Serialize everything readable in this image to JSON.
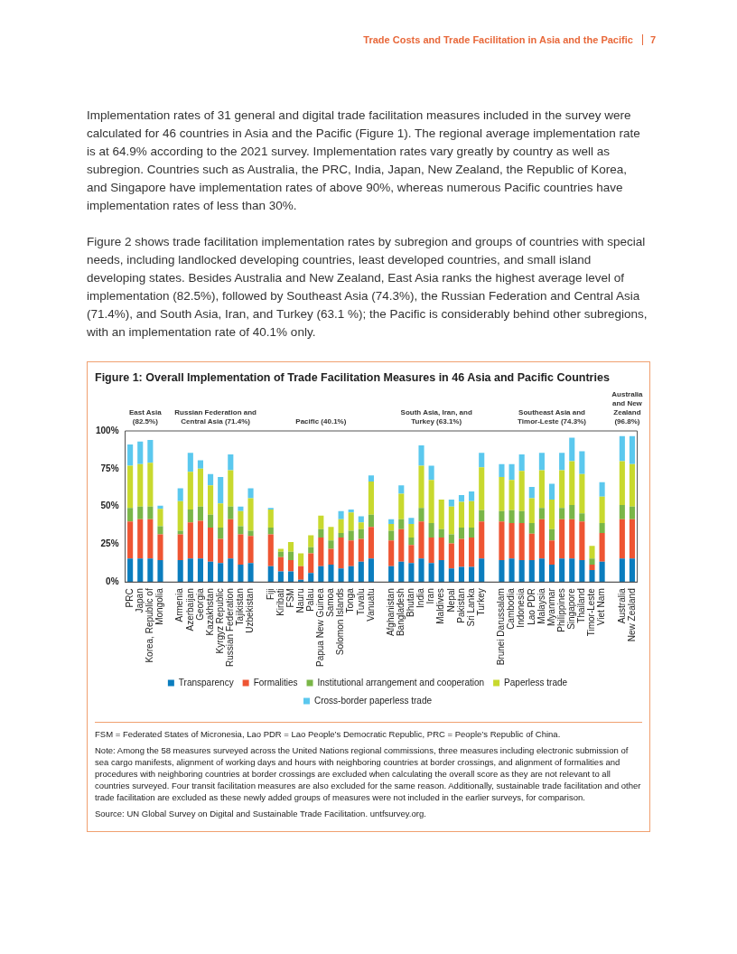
{
  "chart_data": {
    "type": "bar",
    "stacked": true,
    "title": "Figure 1: Overall Implementation of Trade Facilitation Measures in 46 Asia and Pacific Countries",
    "categories": [
      "PRC",
      "Japan",
      "Korea, Republic of",
      "Mongolia",
      null,
      "Armenia",
      "Azerbaijan",
      "Georgia",
      "Kazakhstan",
      "Kyrgyz Republic",
      "Russian Federation",
      "Tajikistan",
      "Uzbekistan",
      null,
      "Fiji",
      "Kiribati",
      "FSM",
      "Nauru",
      "Palau",
      "Papua New Guinea",
      "Samoa",
      "Solomon Islands",
      "Tonga",
      "Tuvalu",
      "Vanuatu",
      null,
      "Afghanistan",
      "Bangladesh",
      "Bhutan",
      "India",
      "Iran",
      "Maldives",
      "Nepal",
      "Pakistan",
      "Sri Lanka",
      "Turkey",
      null,
      "Brunei Darussalam",
      "Cambodia",
      "Indonesia",
      "Lao PDR",
      "Malaysia",
      "Myanmar",
      "Philippines",
      "Singapore",
      "Thailand",
      "Timor-Leste",
      "Viet Nam",
      null,
      "Australia",
      "New Zealand"
    ],
    "series": [
      {
        "name": "Transparency",
        "color": "#0b7dbe",
        "values": [
          15.5,
          15.5,
          15.5,
          14.5,
          null,
          14.5,
          15.5,
          15.5,
          13.5,
          12.5,
          15.5,
          11.5,
          12.5,
          null,
          10.5,
          7,
          7,
          1.5,
          6,
          10.5,
          11.5,
          9,
          10.5,
          13.5,
          15.5,
          null,
          10.5,
          13.5,
          12.5,
          15.5,
          12.5,
          14.5,
          9,
          10,
          10,
          15.5,
          null,
          14.5,
          15.5,
          14.5,
          14.5,
          15.5,
          11.5,
          15.5,
          15.5,
          14.5,
          8,
          13.5,
          null,
          15.5,
          15.5
        ]
      },
      {
        "name": "Formalities",
        "color": "#ee5533",
        "values": [
          24.5,
          26,
          26,
          17,
          null,
          17,
          24,
          25,
          22.5,
          16,
          26,
          20,
          18,
          null,
          21,
          9.5,
          7.5,
          9,
          13,
          19,
          10.5,
          20.5,
          17,
          15,
          21,
          null,
          17,
          21.5,
          12,
          24.5,
          17,
          15,
          16.5,
          18.5,
          19.5,
          24.5,
          null,
          25.5,
          23.5,
          24.5,
          17.5,
          26,
          16,
          26,
          26,
          25.5,
          3.5,
          19,
          null,
          26,
          26
        ]
      },
      {
        "name": "Institutional arrangement and cooperation",
        "color": "#7ab648",
        "values": [
          9,
          8.5,
          8.5,
          5.5,
          null,
          2.5,
          8.5,
          9.5,
          8.5,
          7.5,
          8.5,
          5.5,
          3.5,
          null,
          4.5,
          3.5,
          5.5,
          0,
          4,
          5.5,
          5.5,
          3,
          6.5,
          6.5,
          8,
          null,
          6.5,
          6.5,
          5,
          9,
          9.5,
          5.5,
          6,
          7.5,
          6.5,
          7.5,
          null,
          7,
          8.5,
          8,
          7,
          7.5,
          7.5,
          7.5,
          9.5,
          5.5,
          4,
          6.5,
          null,
          9.5,
          8.5
        ]
      },
      {
        "name": "Paperless trade",
        "color": "#c8d92e",
        "values": [
          28,
          28,
          29,
          11.5,
          null,
          19.5,
          25,
          25,
          19.5,
          16,
          24,
          10,
          21.5,
          null,
          12,
          2,
          6.5,
          8.5,
          8,
          9,
          9,
          9,
          12,
          4.5,
          22,
          null,
          4.5,
          17,
          9,
          28,
          28.5,
          19.5,
          18.5,
          17,
          17.5,
          28.5,
          null,
          22.5,
          20,
          26.5,
          16.5,
          25,
          19.5,
          25,
          29,
          26,
          8.5,
          17.5,
          null,
          29,
          28
        ]
      },
      {
        "name": "Cross-border paperless trade",
        "color": "#5bc8ee",
        "values": [
          14,
          15,
          15,
          2,
          null,
          8.5,
          12.5,
          5.5,
          7.5,
          17.5,
          10.5,
          3,
          6.5,
          null,
          1,
          0,
          0,
          0,
          0,
          0,
          0,
          5.5,
          2,
          4,
          4,
          null,
          3,
          5.5,
          4,
          13.5,
          9.5,
          0,
          4.5,
          4.5,
          6.5,
          9.5,
          null,
          8.5,
          10.5,
          11,
          7.5,
          11.5,
          10.5,
          11.5,
          15.5,
          15,
          0,
          9.5,
          null,
          16.5,
          18.5
        ]
      }
    ],
    "ylim": [
      0,
      100
    ],
    "yticks": [
      {
        "value": 0,
        "label": "0%"
      },
      {
        "value": 25,
        "label": "25%"
      },
      {
        "value": 50,
        "label": "50%"
      },
      {
        "value": 75,
        "label": "75%"
      },
      {
        "value": 100,
        "label": "100%"
      }
    ],
    "legend": "bottom",
    "annotations": [
      "Trade Costs and Trade Facilitation in Asia and the Pacific",
      "7",
      "Implementation rates of 31 general and digital trade facilitation measures included in the survey were calculated for 46 countries in Asia and the Pacific (Figure 1). The regional average implementation rate is at 64.9% according to the 2021 survey. Implementation rates vary greatly by country as well as subregion. Countries such as Australia, the PRC, India, Japan, New Zealand, the Republic of Korea, and Singapore have implementation rates of above 90%, whereas numerous Pacific countries have implementation rates of less than 30%.",
      "Figure 2 shows trade facilitation implementation rates by subregion and groups of countries with special needs, including landlocked developing countries, least developed countries, and small island developing states. Besides Australia and New Zealand, East Asia ranks the highest average level of implementation (82.5%), followed by Southeast Asia (74.3%), the Russian Federation and Central Asia (71.4%), and South Asia, Iran, and Turkey (63.1 %); the Pacific is considerably behind other subregions, with an implementation rate of 40.1% only.",
      "FSM = Federated States of Micronesia, Lao PDR = Lao People’s Democratic Republic, PRC = People’s Republic of China.",
      "Note: Among the 58 measures surveyed across the United Nations regional commissions, three measures including electronic submission of sea cargo manifests, alignment of working days and hours with neighboring countries at border crossings, and alignment of formalities and procedures with neighboring countries at border crossings are excluded when calculating the overall score as they are not relevant to all countries surveyed. Four transit facilitation measures are also excluded for the same reason. Additionally, sustainable trade facilitation and other trade facilitation are excluded as these newly added groups of measures were not included in the earlier surveys, for comparison.",
      "Source: UN Global Survey on Digital and Sustainable Trade Facilitation. untfsurvey.org.",
      "East Asia (82.5%)",
      "Russian Federation and Central Asia (71.4%)",
      "Pacific (40.1%)",
      "South Asia, Iran, and Turkey (63.1%)",
      "Southeast Asia and Timor-Leste (74.3%)",
      "Australia and New Zealand (96.8%)"
    ]
  }
}
